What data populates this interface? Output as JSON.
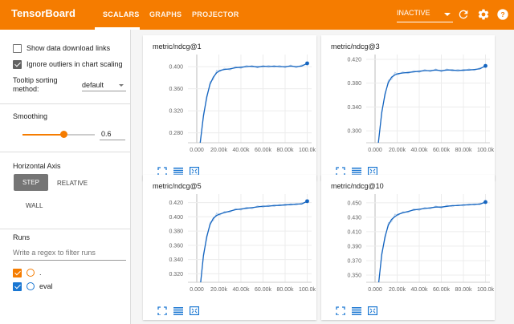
{
  "app": {
    "brand": "TensorBoard",
    "tabs": [
      {
        "label": "SCALARS",
        "active": true
      },
      {
        "label": "GRAPHS",
        "active": false
      },
      {
        "label": "PROJECTOR",
        "active": false
      }
    ],
    "run_state": "INACTIVE",
    "icons": [
      "refresh-icon",
      "settings-icon",
      "help-icon"
    ],
    "accent": "#f57c00"
  },
  "sidebar": {
    "show_download_label": "Show data download links",
    "show_download_checked": false,
    "ignore_outliers_label": "Ignore outliers in chart scaling",
    "ignore_outliers_checked": true,
    "tooltip_label_line1": "Tooltip sorting",
    "tooltip_label_line2": "method:",
    "tooltip_value": "default",
    "smoothing_title": "Smoothing",
    "smoothing_value": "0.6",
    "horizontal_axis_title": "Horizontal Axis",
    "axis_step": "STEP",
    "axis_relative": "RELATIVE",
    "axis_wall": "WALL",
    "runs_title": "Runs",
    "regex_placeholder": "Write a regex to filter runs",
    "runs": [
      {
        "name": ".",
        "color": "#f57c00",
        "checked": true
      },
      {
        "name": "eval",
        "color": "#1976d2",
        "checked": true
      }
    ]
  },
  "chart_data": [
    {
      "type": "line",
      "title": "metric/ndcg@1",
      "x_ticks": [
        "0.000",
        "20.00k",
        "40.00k",
        "60.00k",
        "80.00k",
        "100.0k"
      ],
      "y_ticks": [
        "0.280",
        "0.320",
        "0.360",
        "0.400"
      ],
      "xlim": [
        -8000,
        104000
      ],
      "ylim": [
        0.262,
        0.422
      ],
      "series": [
        {
          "x": [
            0,
            3000,
            6000,
            9000,
            12000,
            15000,
            18000,
            21000,
            25000,
            30000,
            35000,
            40000,
            45000,
            50000,
            55000,
            60000,
            65000,
            70000,
            75000,
            80000,
            85000,
            90000,
            95000,
            100000
          ],
          "y": [
            0.22,
            0.26,
            0.31,
            0.345,
            0.368,
            0.381,
            0.389,
            0.393,
            0.395,
            0.396,
            0.398,
            0.399,
            0.4,
            0.401,
            0.399,
            0.401,
            0.4,
            0.401,
            0.4,
            0.4,
            0.401,
            0.4,
            0.401,
            0.406
          ],
          "color": "#1565c0"
        }
      ]
    },
    {
      "type": "line",
      "title": "metric/ndcg@3",
      "x_ticks": [
        "0.000",
        "20.00k",
        "40.00k",
        "60.00k",
        "80.00k",
        "100.0k"
      ],
      "y_ticks": [
        "0.300",
        "0.340",
        "0.380",
        "0.420"
      ],
      "xlim": [
        -8000,
        104000
      ],
      "ylim": [
        0.28,
        0.428
      ],
      "series": [
        {
          "x": [
            0,
            3000,
            6000,
            9000,
            12000,
            15000,
            18000,
            21000,
            25000,
            30000,
            35000,
            40000,
            45000,
            50000,
            55000,
            60000,
            65000,
            70000,
            75000,
            80000,
            85000,
            90000,
            95000,
            100000
          ],
          "y": [
            0.24,
            0.28,
            0.33,
            0.362,
            0.381,
            0.39,
            0.394,
            0.396,
            0.397,
            0.398,
            0.399,
            0.4,
            0.401,
            0.401,
            0.402,
            0.401,
            0.402,
            0.402,
            0.401,
            0.402,
            0.402,
            0.403,
            0.404,
            0.409
          ],
          "color": "#1565c0"
        }
      ]
    },
    {
      "type": "line",
      "title": "metric/ndcg@5",
      "x_ticks": [
        "0.000",
        "20.00k",
        "40.00k",
        "60.00k",
        "80.00k",
        "100.0k"
      ],
      "y_ticks": [
        "0.320",
        "0.340",
        "0.360",
        "0.380",
        "0.400",
        "0.420"
      ],
      "xlim": [
        -8000,
        104000
      ],
      "ylim": [
        0.308,
        0.432
      ],
      "series": [
        {
          "x": [
            0,
            3000,
            6000,
            9000,
            12000,
            15000,
            18000,
            21000,
            25000,
            30000,
            35000,
            40000,
            45000,
            50000,
            55000,
            60000,
            65000,
            70000,
            75000,
            80000,
            85000,
            90000,
            95000,
            100000
          ],
          "y": [
            0.27,
            0.3,
            0.345,
            0.372,
            0.389,
            0.398,
            0.402,
            0.404,
            0.406,
            0.408,
            0.41,
            0.411,
            0.412,
            0.413,
            0.414,
            0.415,
            0.415,
            0.416,
            0.416,
            0.417,
            0.417,
            0.418,
            0.418,
            0.422
          ],
          "color": "#1565c0"
        }
      ]
    },
    {
      "type": "line",
      "title": "metric/ndcg@10",
      "x_ticks": [
        "0.000",
        "20.00k",
        "40.00k",
        "60.00k",
        "80.00k",
        "100.0k"
      ],
      "y_ticks": [
        "0.350",
        "0.370",
        "0.390",
        "0.410",
        "0.430",
        "0.450"
      ],
      "xlim": [
        -8000,
        104000
      ],
      "ylim": [
        0.34,
        0.462
      ],
      "series": [
        {
          "x": [
            0,
            3000,
            6000,
            9000,
            12000,
            15000,
            18000,
            21000,
            25000,
            30000,
            35000,
            40000,
            45000,
            50000,
            55000,
            60000,
            65000,
            70000,
            75000,
            80000,
            85000,
            90000,
            95000,
            100000
          ],
          "y": [
            0.3,
            0.335,
            0.378,
            0.403,
            0.419,
            0.427,
            0.431,
            0.434,
            0.436,
            0.438,
            0.44,
            0.441,
            0.442,
            0.443,
            0.444,
            0.444,
            0.445,
            0.446,
            0.446,
            0.447,
            0.447,
            0.448,
            0.448,
            0.451
          ],
          "color": "#1565c0"
        }
      ]
    }
  ],
  "card_buttons": [
    "fullscreen-icon",
    "toggle-log-scale-icon",
    "fit-domain-icon"
  ]
}
